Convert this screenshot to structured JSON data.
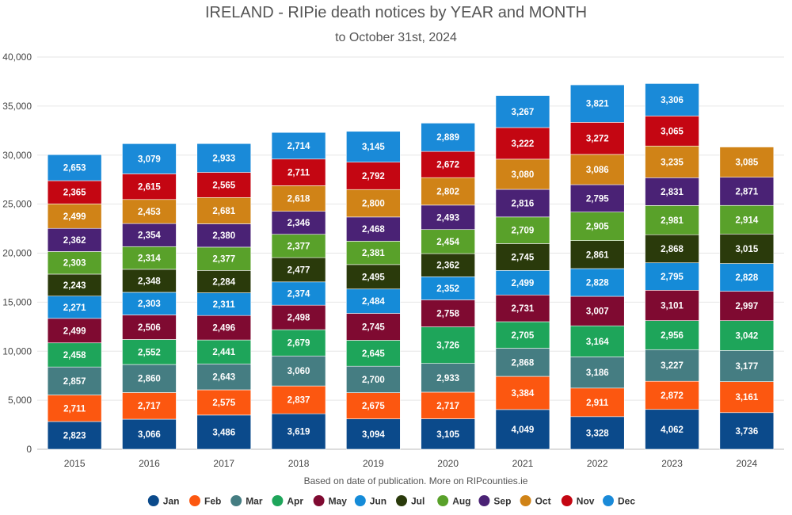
{
  "chart_data": {
    "type": "bar",
    "stacked": true,
    "title": "IRELAND - RIPie death notices by YEAR and MONTH",
    "subtitle": "to October 31st, 2024",
    "xlabel": "",
    "ylabel": "",
    "note": "Based on date of publication. More on RIPcounties.ie",
    "ylim": [
      0,
      40000
    ],
    "yticks": [
      0,
      5000,
      10000,
      15000,
      20000,
      25000,
      30000,
      35000,
      40000
    ],
    "ytick_labels": [
      "0",
      "5,000",
      "10,000",
      "15,000",
      "20,000",
      "25,000",
      "30,000",
      "35,000",
      "40,000"
    ],
    "categories": [
      "2015",
      "2016",
      "2017",
      "2018",
      "2019",
      "2020",
      "2021",
      "2022",
      "2023",
      "2024"
    ],
    "legend_position": "bottom",
    "series": [
      {
        "name": "Jan",
        "color": "#0b4a8b",
        "values": [
          2823,
          3066,
          3486,
          3619,
          3094,
          3105,
          4049,
          3328,
          4062,
          3736
        ]
      },
      {
        "name": "Feb",
        "color": "#fc5710",
        "values": [
          2711,
          2717,
          2575,
          2837,
          2675,
          2717,
          3384,
          2911,
          2872,
          3161
        ]
      },
      {
        "name": "Mar",
        "color": "#457d82",
        "values": [
          2857,
          2860,
          2643,
          3060,
          2700,
          2933,
          2868,
          3186,
          3227,
          3177
        ]
      },
      {
        "name": "Apr",
        "color": "#1ea55a",
        "values": [
          2458,
          2552,
          2441,
          2679,
          2645,
          3726,
          2705,
          3164,
          2956,
          3042
        ]
      },
      {
        "name": "May",
        "color": "#7f0a31",
        "values": [
          2499,
          2506,
          2496,
          2498,
          2745,
          2758,
          2731,
          3007,
          3101,
          2997
        ]
      },
      {
        "name": "Jun",
        "color": "#158bd8",
        "values": [
          2271,
          2303,
          2311,
          2374,
          2484,
          2352,
          2499,
          2828,
          2795,
          2828
        ]
      },
      {
        "name": "Jul",
        "color": "#2a3a0b",
        "values": [
          2243,
          2348,
          2284,
          2477,
          2495,
          2362,
          2745,
          2861,
          2868,
          3015
        ]
      },
      {
        "name": "Aug",
        "color": "#59a12a",
        "values": [
          2303,
          2314,
          2377,
          2377,
          2381,
          2454,
          2709,
          2905,
          2981,
          2914
        ]
      },
      {
        "name": "Sep",
        "color": "#4a2275",
        "values": [
          2362,
          2354,
          2380,
          2346,
          2468,
          2493,
          2816,
          2795,
          2831,
          2871
        ]
      },
      {
        "name": "Oct",
        "color": "#d08317",
        "values": [
          2499,
          2453,
          2681,
          2618,
          2800,
          2802,
          3080,
          3086,
          3235,
          3085
        ]
      },
      {
        "name": "Nov",
        "color": "#c40612",
        "values": [
          2365,
          2615,
          2565,
          2711,
          2792,
          2672,
          3222,
          3272,
          3065,
          null
        ]
      },
      {
        "name": "Dec",
        "color": "#1a8ad8",
        "values": [
          2653,
          3079,
          2933,
          2714,
          3145,
          2889,
          3267,
          3821,
          3306,
          null
        ]
      }
    ]
  }
}
